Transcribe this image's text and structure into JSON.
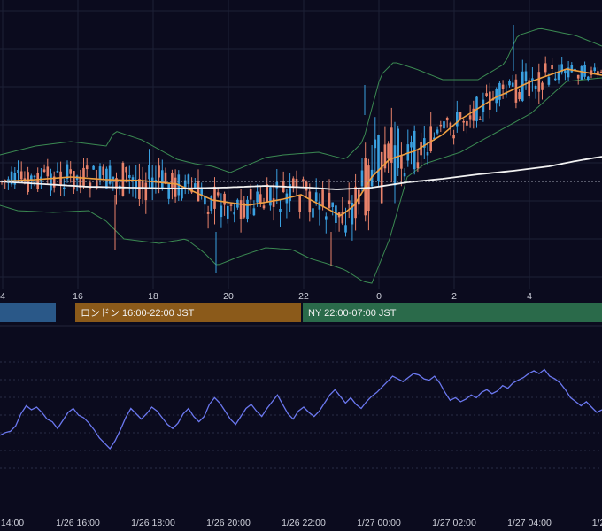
{
  "chart_data": [
    {
      "type": "candlestick",
      "overlays": [
        "bollinger_bands",
        "moving_average_fast",
        "moving_average_slow"
      ],
      "x_ticks": [
        "4",
        "16",
        "18",
        "20",
        "22",
        "0",
        "2",
        "4"
      ],
      "colors": {
        "background": "#0b0b1e",
        "up_candle": "#3aa0e0",
        "down_candle": "#e8826a",
        "bollinger": "#3b8a52",
        "ma_fast": "#f0a040",
        "ma_slow": "#f2f2f2",
        "grid": "#1c2036",
        "price_line": "#a0a4b4"
      },
      "sessions": [
        {
          "label": "",
          "color": "#2a5888"
        },
        {
          "label": "ロンドン 16:00-22:00 JST",
          "color": "#8b5a1a"
        },
        {
          "label": "NY 22:00-07:00 JST",
          "color": "#2a6a4a"
        }
      ]
    },
    {
      "type": "line",
      "series_color": "#6b78f0",
      "x_ticks": [
        "14:00",
        "1/26 16:00",
        "1/26 18:00",
        "1/26 20:00",
        "1/26 22:00",
        "1/27 00:00",
        "1/27 02:00",
        "1/27 04:00",
        "1/2"
      ],
      "grid": "dashed",
      "values": [
        32,
        34,
        35,
        39,
        48,
        54,
        51,
        53,
        49,
        44,
        42,
        37,
        43,
        49,
        52,
        47,
        45,
        41,
        36,
        30,
        26,
        22,
        28,
        36,
        45,
        52,
        48,
        44,
        48,
        53,
        50,
        45,
        40,
        37,
        41,
        48,
        52,
        46,
        42,
        46,
        55,
        60,
        56,
        50,
        44,
        40,
        46,
        52,
        55,
        50,
        46,
        52,
        57,
        62,
        55,
        48,
        44,
        50,
        53,
        49,
        46,
        50,
        56,
        62,
        66,
        61,
        56,
        60,
        55,
        52,
        57,
        61,
        64,
        68,
        72,
        76,
        74,
        72,
        75,
        78,
        77,
        74,
        73,
        76,
        71,
        64,
        58,
        60,
        57,
        59,
        62,
        60,
        64,
        66,
        63,
        65,
        69,
        67,
        71,
        73,
        75,
        78,
        80,
        78,
        81,
        76,
        74,
        71,
        66,
        60,
        57,
        54,
        57,
        53,
        49,
        51
      ]
    }
  ]
}
